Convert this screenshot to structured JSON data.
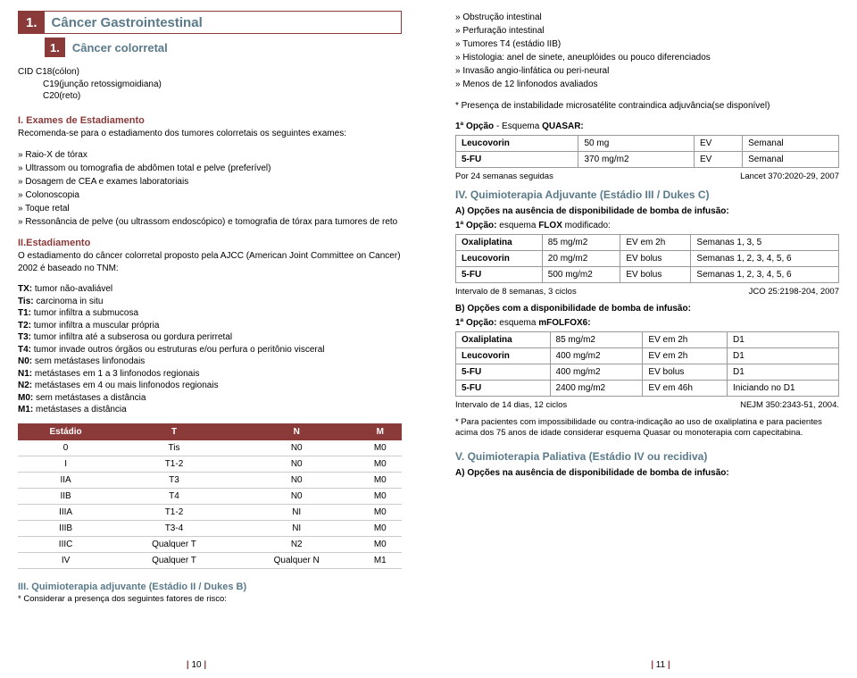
{
  "colors": {
    "maroon": "#8b3a3a",
    "teal": "#5a7a8a"
  },
  "left": {
    "section_num": "1.",
    "section_title": "Câncer Gastrointestinal",
    "sub_num": "1.",
    "sub_title": "Câncer colorretal",
    "cid": [
      "CID  C18(cólon)",
      "C19(junção retossigmoidiana)",
      "C20(reto)"
    ],
    "exames_h": "I. Exames de Estadiamento",
    "exames_intro": "Recomenda-se para o estadiamento dos tumores colorretais os seguintes exames:",
    "exames_list": [
      "Raio-X de tórax",
      "Ultrassom ou tomografia de abdômen total e pelve (preferível)",
      "Dosagem de CEA e exames laboratoriais",
      "Colonoscopia",
      "Toque retal",
      "Ressonância de pelve (ou ultrassom endoscópico) e tomografia de  tórax para tumores de reto"
    ],
    "estad_h": "II.Estadiamento",
    "estad_intro": "O estadiamento do câncer colorretal proposto pela AJCC (American Joint Committee on Cancer) 2002 é baseado no TNM:",
    "tnm_defs": [
      [
        "TX:",
        "tumor não-avaliável"
      ],
      [
        "Tis:",
        "carcinoma in situ"
      ],
      [
        "T1:",
        "tumor infiltra a submucosa"
      ],
      [
        "T2:",
        "tumor infiltra a muscular própria"
      ],
      [
        "T3:",
        "tumor infiltra até a subserosa ou gordura perirretal"
      ],
      [
        "T4:",
        "tumor invade outros órgãos ou estruturas e/ou perfura o peritônio visceral"
      ],
      [
        "N0:",
        "sem metástases linfonodais"
      ],
      [
        "N1:",
        "metástases em 1 a 3 linfonodos regionais"
      ],
      [
        "N2:",
        "metástases em 4 ou mais linfonodos regionais"
      ],
      [
        "M0:",
        "sem metástases a distância"
      ],
      [
        "M1:",
        "metástases a distância"
      ]
    ],
    "tnm_headers": [
      "Estádio",
      "T",
      "N",
      "M"
    ],
    "tnm_rows": [
      [
        "0",
        "Tis",
        "N0",
        "M0"
      ],
      [
        "I",
        "T1-2",
        "N0",
        "M0"
      ],
      [
        "IIA",
        "T3",
        "N0",
        "M0"
      ],
      [
        "IIB",
        "T4",
        "N0",
        "M0"
      ],
      [
        "IIIA",
        "T1-2",
        "NI",
        "M0"
      ],
      [
        "IIIB",
        "T3-4",
        "NI",
        "M0"
      ],
      [
        "IIIC",
        "Qualquer T",
        "N2",
        "M0"
      ],
      [
        "IV",
        "Qualquer T",
        "Qualquer N",
        "M1"
      ]
    ],
    "iii_title": "III. Quimioterapia adjuvante (Estádio II / Dukes B)",
    "iii_note": "* Considerar a presença dos seguintes fatores de risco:",
    "page_num": "10"
  },
  "right": {
    "risk_list": [
      "Obstrução intestinal",
      "Perfuração intestinal",
      "Tumores T4 (estádio IIB)",
      "Histologia: anel de sinete, aneuplóides ou pouco diferenciados",
      "Invasão angio-linfática ou peri-neural",
      "Menos de 12 linfonodos avaliados"
    ],
    "micro_note": "* Presença de instabilidade microsatélite contraindica adjuvância(se disponível)",
    "opt1_label_a": "1ª Opção",
    "opt1_label_b": " - Esquema ",
    "opt1_label_c": "QUASAR:",
    "quasar_rows": [
      [
        "Leucovorin",
        "50 mg",
        "EV",
        "Semanal"
      ],
      [
        "5-FU",
        "370 mg/m2",
        "EV",
        "Semanal"
      ]
    ],
    "quasar_note_l": "Por 24 semanas seguidas",
    "quasar_note_r": "Lancet 370:2020-29, 2007",
    "iv_title": "IV. Quimioterapia Adjuvante (Estádio III / Dukes C)",
    "iv_a": "A) Opções na ausência de disponibilidade de bomba de infusão:",
    "flox_label_a": "1ª Opção:",
    "flox_label_b": " esquema ",
    "flox_label_c": "FLOX",
    "flox_label_d": " modificado:",
    "flox_rows": [
      [
        "Oxaliplatina",
        "85 mg/m2",
        "EV em 2h",
        "Semanas 1, 3, 5"
      ],
      [
        "Leucovorin",
        "20 mg/m2",
        "EV bolus",
        "Semanas 1, 2, 3, 4, 5, 6"
      ],
      [
        "5-FU",
        "500 mg/m2",
        "EV bolus",
        "Semanas 1, 2, 3, 4, 5, 6"
      ]
    ],
    "flox_note_l": "Intervalo de 8 semanas, 3 ciclos",
    "flox_note_r": "JCO 25:2198-204, 2007",
    "iv_b": "B) Opções com a disponibilidade de bomba de infusão:",
    "folfox_label_a": "1ª Opção:",
    "folfox_label_b": " esquema ",
    "folfox_label_c": "mFOLFOX6:",
    "folfox_rows": [
      [
        "Oxaliplatina",
        "85 mg/m2",
        "EV em 2h",
        "D1"
      ],
      [
        "Leucovorin",
        "400 mg/m2",
        "EV em 2h",
        "D1"
      ],
      [
        "5-FU",
        "400 mg/m2",
        "EV bolus",
        "D1"
      ],
      [
        "5-FU",
        "2400 mg/m2",
        "EV em 46h",
        "Iniciando no D1"
      ]
    ],
    "folfox_note_l": "Intervalo de 14 dias, 12 ciclos",
    "folfox_note_r": "NEJM 350:2343-51, 2004.",
    "folfox_foot": "* Para pacientes com impossibilidade ou contra-indicação ao uso de oxaliplatina e para pacientes acima dos 75 anos de idade considerar esquema Quasar ou monoterapia com capecitabina.",
    "v_title": "V. Quimioterapia Paliativa (Estádio IV ou recidiva)",
    "v_a": "A) Opções na ausência de disponibilidade de bomba de infusão:",
    "page_num": "11"
  }
}
